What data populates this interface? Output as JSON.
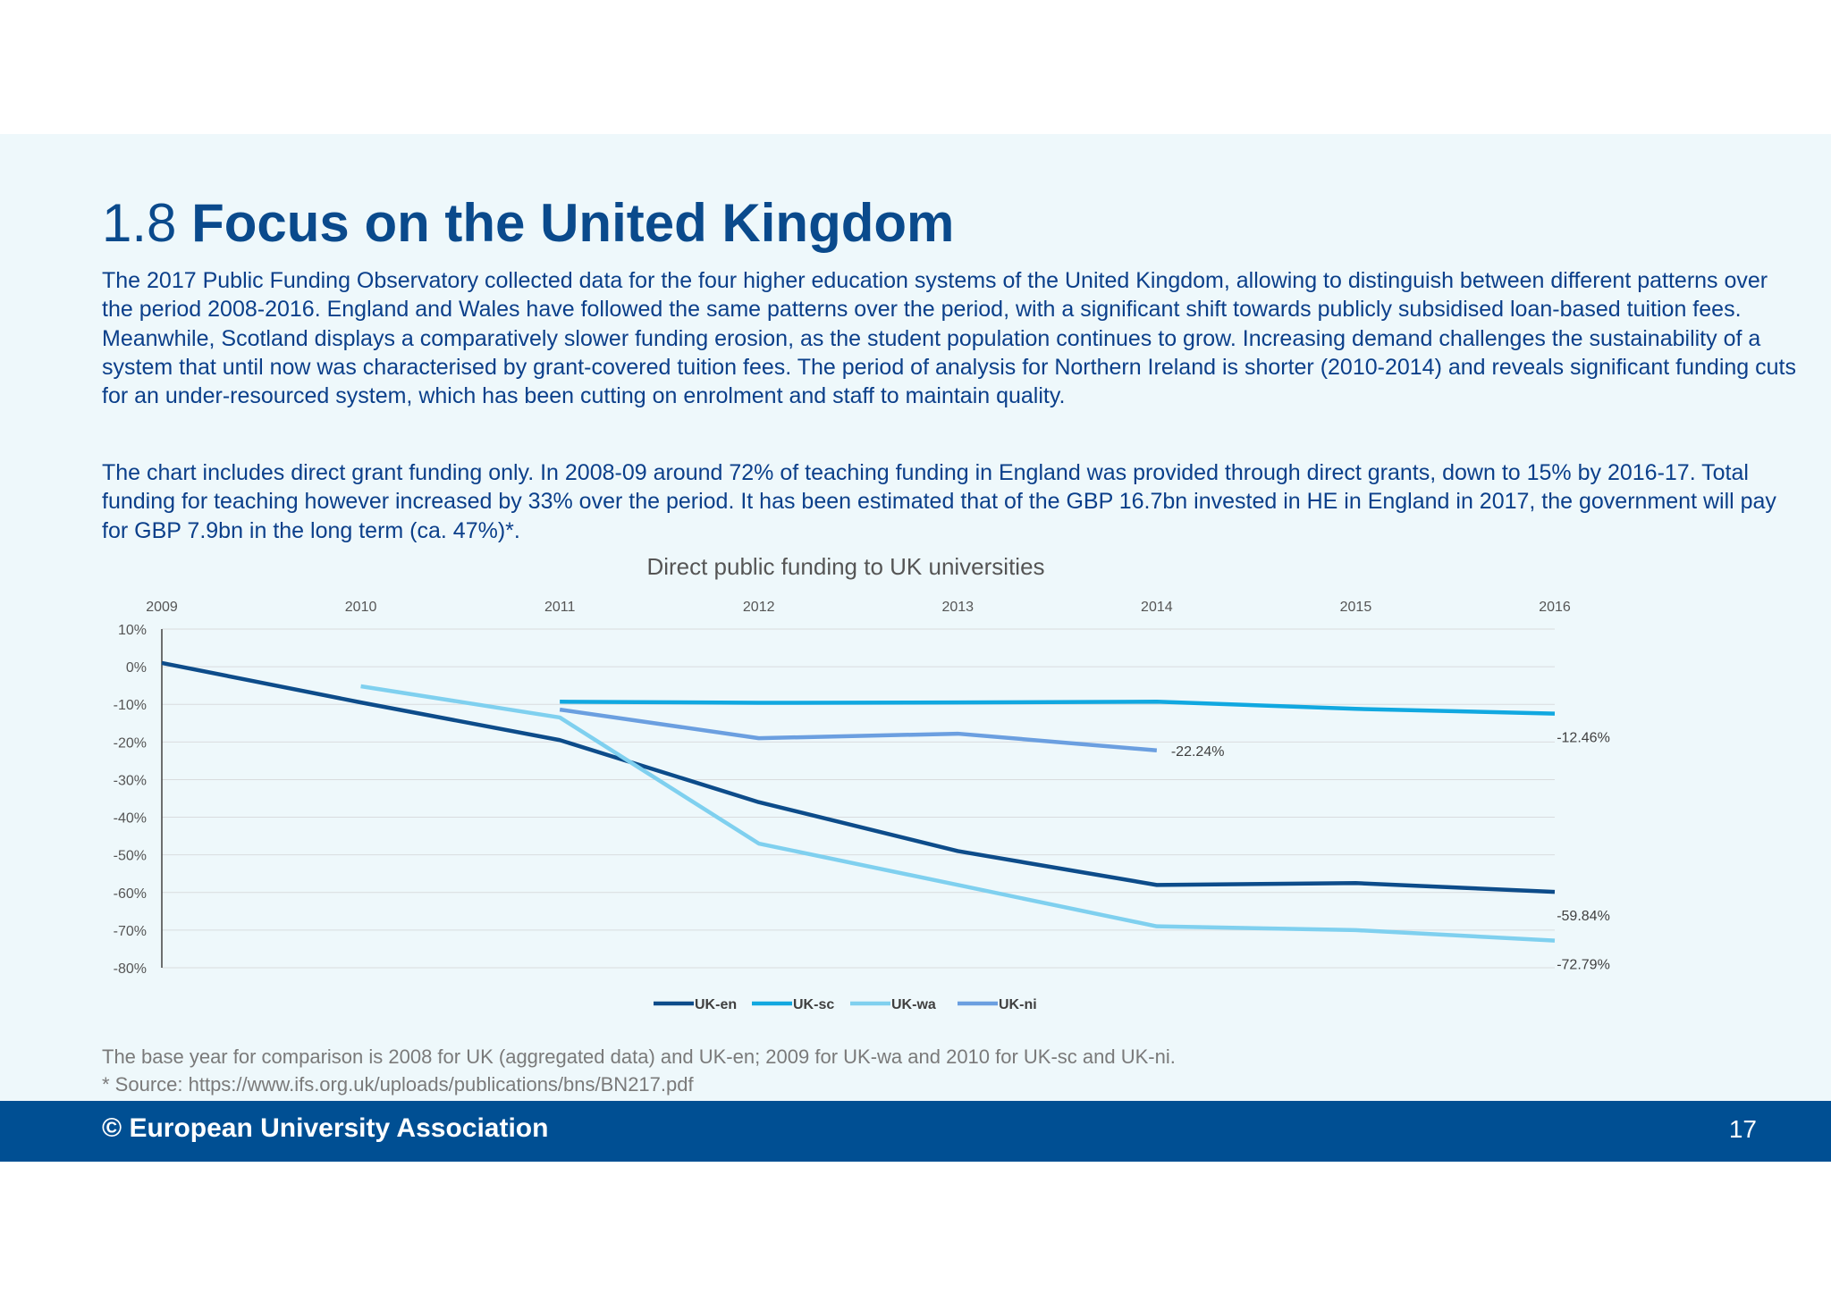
{
  "slide": {
    "section_number": "1.8",
    "title": "Focus on the United Kingdom",
    "paragraphs": [
      "The 2017 Public Funding Observatory collected data for the four higher education systems of the United Kingdom, allowing to distinguish between different patterns over the period 2008-2016. England and Wales have followed the same patterns over the period, with a significant shift towards publicly subsidised loan-based tuition fees. Meanwhile, Scotland displays a comparatively slower funding erosion, as the student population continues to grow. Increasing demand challenges the sustainability of a system that until now was characterised by grant-covered tuition fees. The period of analysis for Northern Ireland is shorter (2010-2014) and reveals significant funding cuts for an under-resourced system, which has been cutting on enrolment and staff to maintain quality.",
      "The chart includes direct grant funding only. In 2008-09 around 72% of teaching funding in England was provided through direct grants, down to 15% by 2016-17. Total funding for teaching however increased by 33% over the period. It has been estimated that of the GBP 16.7bn invested in HE in England in 2017, the government will pay for GBP 7.9bn in the long term (ca. 47%)*."
    ],
    "notes": [
      "The base year for comparison is 2008 for UK (aggregated data) and UK-en; 2009 for UK-wa and 2010 for UK-sc and UK-ni.",
      "* Source: https://www.ifs.org.uk/uploads/publications/bns/BN217.pdf"
    ]
  },
  "footer": {
    "copyright": "© European University Association",
    "page_number": "17",
    "background_color": "#004f93"
  },
  "chart_data": {
    "type": "line",
    "title": "Direct public funding to UK universities",
    "x": [
      2009,
      2010,
      2011,
      2012,
      2013,
      2014,
      2015,
      2016
    ],
    "x_tick_labels": [
      "2009",
      "2010",
      "2011",
      "2012",
      "2013",
      "2014",
      "2015",
      "2016"
    ],
    "x_axis_position": "top",
    "ylim": [
      -80,
      10
    ],
    "y_ticks": [
      10,
      0,
      -10,
      -20,
      -30,
      -40,
      -50,
      -60,
      -70,
      -80
    ],
    "y_tick_labels": [
      "10%",
      "0%",
      "-10%",
      "-20%",
      "-30%",
      "-40%",
      "-50%",
      "-60%",
      "-70%",
      "-80%"
    ],
    "grid": true,
    "legend_position": "bottom",
    "series": [
      {
        "name": "UK-en",
        "color": "#0d4c8a",
        "values": [
          1,
          -9.5,
          -19.5,
          -36,
          -49,
          -58,
          -57.5,
          -59.84
        ],
        "end_label": "-59.84%"
      },
      {
        "name": "UK-sc",
        "color": "#11a8e0",
        "values": [
          null,
          null,
          -9.3,
          -9.6,
          -9.5,
          -9.3,
          -11.2,
          -12.46
        ],
        "end_label": "-12.46%"
      },
      {
        "name": "UK-wa",
        "color": "#7fd0ef",
        "values": [
          null,
          -5.2,
          -13.5,
          -47,
          -58,
          -69,
          -70,
          -72.79
        ],
        "end_label": "-72.79%"
      },
      {
        "name": "UK-ni",
        "color": "#6b9fe0",
        "values": [
          null,
          null,
          -11.4,
          -19,
          -17.8,
          -22.24,
          null,
          null
        ],
        "end_label": "-22.24%"
      }
    ]
  }
}
